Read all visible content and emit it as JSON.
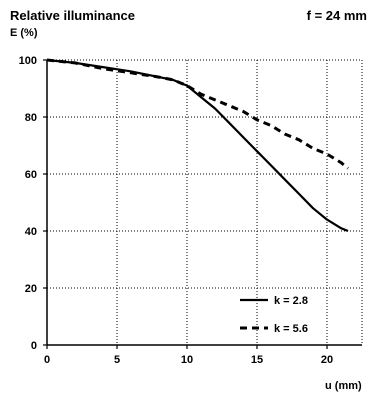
{
  "header": {
    "title": "Relative illuminance",
    "ylabel": "E (%)",
    "focal": "f = 24 mm"
  },
  "chart_data": {
    "type": "line",
    "title": "Relative illuminance",
    "ylabel": "E (%)",
    "xlabel": "u (mm)",
    "annotation": "f = 24 mm",
    "xlim": [
      0,
      22.5
    ],
    "ylim": [
      0,
      100
    ],
    "x_ticks": [
      "0",
      "5",
      "10",
      "15",
      "20"
    ],
    "y_ticks": [
      "0",
      "20",
      "40",
      "60",
      "80",
      "100"
    ],
    "grid": true,
    "legend_position": "bottom-right",
    "series": [
      {
        "name": "k = 2.8",
        "style": "solid",
        "color": "#000000",
        "points": [
          [
            0,
            100
          ],
          [
            2,
            99
          ],
          [
            4,
            97.5
          ],
          [
            6,
            96
          ],
          [
            8,
            94
          ],
          [
            9,
            93
          ],
          [
            10,
            91
          ],
          [
            11,
            87
          ],
          [
            12,
            83
          ],
          [
            13,
            78
          ],
          [
            14,
            73
          ],
          [
            15,
            68
          ],
          [
            16,
            63
          ],
          [
            17,
            58
          ],
          [
            18,
            53
          ],
          [
            19,
            48
          ],
          [
            20,
            44
          ],
          [
            21,
            41
          ],
          [
            21.5,
            40
          ]
        ]
      },
      {
        "name": "k = 5.6",
        "style": "dashed",
        "color": "#000000",
        "points": [
          [
            0,
            100
          ],
          [
            2,
            99
          ],
          [
            4,
            97
          ],
          [
            6,
            95.5
          ],
          [
            8,
            94
          ],
          [
            9,
            93
          ],
          [
            10,
            91
          ],
          [
            11,
            88
          ],
          [
            12,
            86
          ],
          [
            13,
            84
          ],
          [
            14,
            82
          ],
          [
            15,
            79
          ],
          [
            16,
            77
          ],
          [
            17,
            74
          ],
          [
            18,
            72
          ],
          [
            19,
            69
          ],
          [
            20,
            67
          ],
          [
            21,
            64
          ],
          [
            21.5,
            62
          ]
        ]
      }
    ]
  }
}
